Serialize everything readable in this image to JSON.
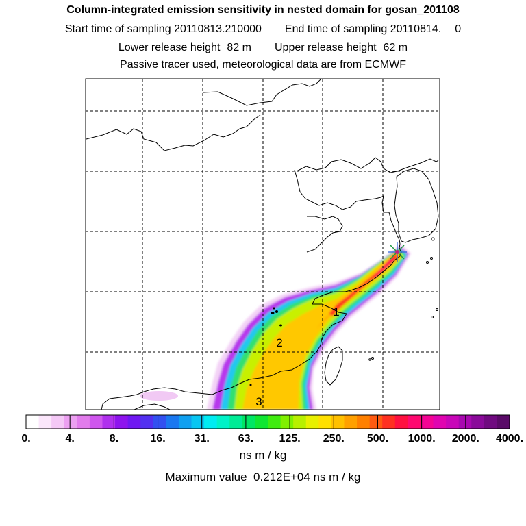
{
  "header": {
    "title": "Column-integrated emission sensitivity in nested domain for gosan_201108",
    "start_label": "Start time of sampling",
    "start_value": "20110813.210000",
    "end_label": "End time of sampling",
    "end_value": "20110814.",
    "end_suffix": "0",
    "lower_label": "Lower release height",
    "lower_value": "82 m",
    "upper_label": "Upper release height",
    "upper_value": "62 m",
    "info": "Passive tracer used, meteorological data are from ECMWF"
  },
  "chart_data": {
    "type": "heatmap",
    "title": "Column-integrated emission sensitivity in nested domain for gosan_201108",
    "colorbar": {
      "unit": "ns m / kg",
      "tick_labels": [
        "0.",
        "4.",
        "8.",
        "16.",
        "31.",
        "63.",
        "125.",
        "250.",
        "500.",
        "1000.",
        "2000.",
        "4000."
      ],
      "tick_values": [
        0,
        4,
        8,
        16,
        31,
        63,
        125,
        250,
        500,
        1000,
        2000,
        4000
      ],
      "colors": [
        "#ffffff",
        "#fbe6fb",
        "#f4c8f6",
        "#eca0f1",
        "#e27cec",
        "#cf56ee",
        "#b030ee",
        "#8e14ee",
        "#7018f2",
        "#5230f0",
        "#3250f0",
        "#1a78f0",
        "#10a0f0",
        "#08c6f2",
        "#00ecf2",
        "#00f2c8",
        "#00ec96",
        "#00e664",
        "#10e632",
        "#40ec10",
        "#80f000",
        "#b8f000",
        "#e8f000",
        "#ffe000",
        "#ffc000",
        "#ffa000",
        "#ff8000",
        "#ff5a10",
        "#ff3020",
        "#ff1040",
        "#ff0870",
        "#f40494",
        "#e004b0",
        "#c806b8",
        "#a808b0",
        "#8a0a9a",
        "#700a80",
        "#5a0a68"
      ]
    },
    "max_value_label": "Maximum value",
    "max_value": "0.212E+04",
    "max_value_unit": "ns m / kg",
    "receptor": "gosan",
    "plume_labels": [
      "1",
      "2",
      "3"
    ]
  }
}
